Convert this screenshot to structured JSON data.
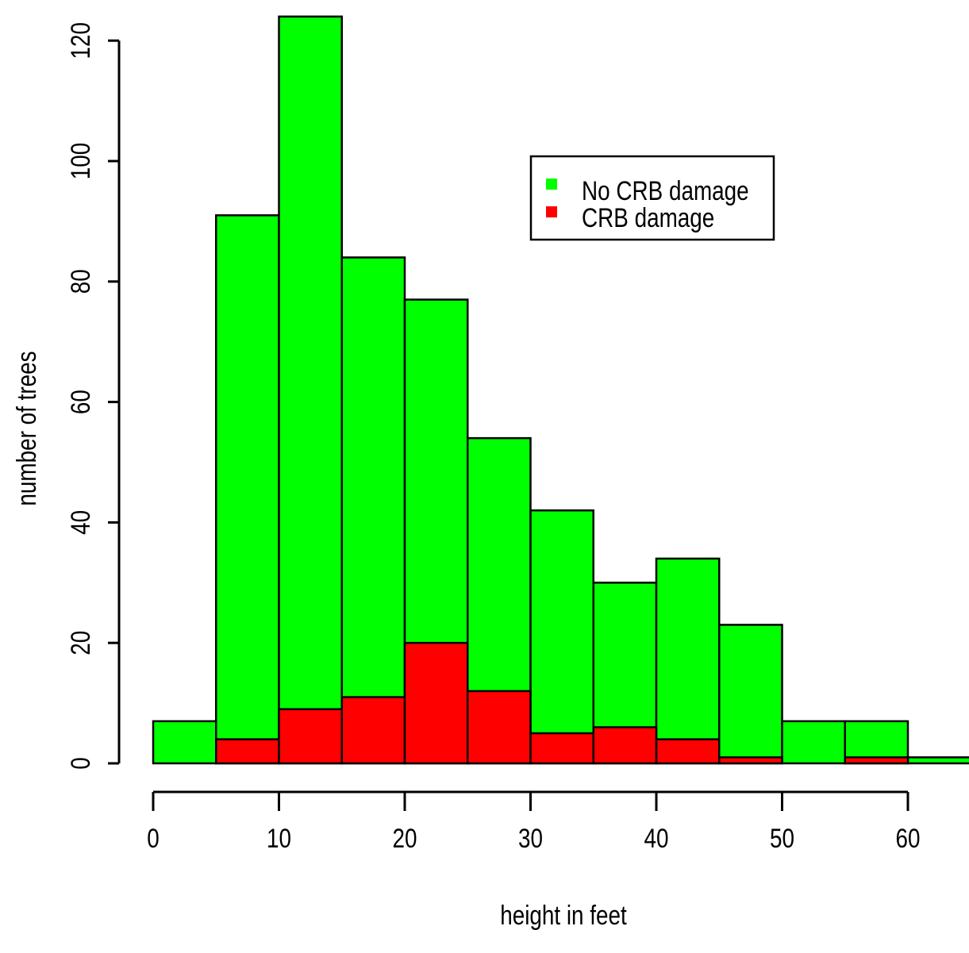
{
  "chart_data": {
    "type": "bar",
    "stacked": false,
    "bin_edges": [
      0,
      5,
      10,
      15,
      20,
      25,
      30,
      35,
      40,
      45,
      50,
      55,
      60,
      65
    ],
    "series": [
      {
        "name": "No CRB damage",
        "color": "#00ff00",
        "values": [
          7,
          91,
          124,
          84,
          77,
          54,
          42,
          30,
          34,
          23,
          7,
          7,
          1
        ]
      },
      {
        "name": "CRB damage",
        "color": "#ff0000",
        "values": [
          0,
          4,
          9,
          11,
          20,
          12,
          5,
          6,
          4,
          1,
          0,
          1,
          0
        ]
      }
    ],
    "xlabel": "height in feet",
    "ylabel": "number of trees",
    "x_ticks": [
      "0",
      "10",
      "20",
      "30",
      "40",
      "50",
      "60"
    ],
    "y_ticks": [
      "0",
      "20",
      "40",
      "60",
      "80",
      "100",
      "120"
    ],
    "xlim": [
      0,
      65
    ],
    "ylim": [
      0,
      124
    ],
    "grid": false,
    "legend_position": "top-right"
  }
}
